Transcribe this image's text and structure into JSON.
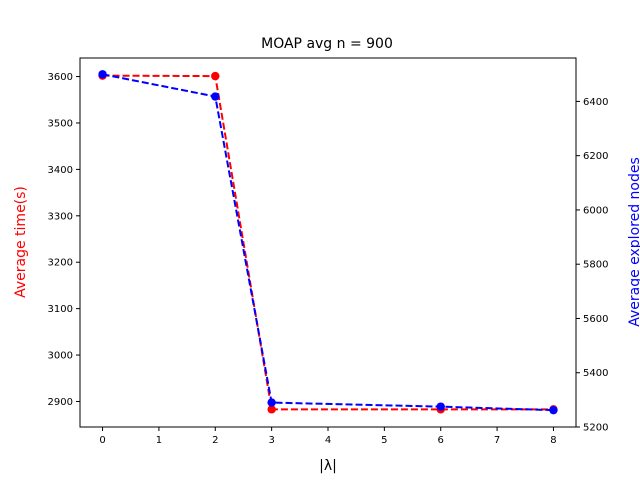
{
  "chart_data": {
    "type": "line",
    "title": "MOAP avg n = 900",
    "xlabel": "|λ|",
    "ylabel_left": "Average time(s)",
    "ylabel_right": "Average explored nodes",
    "xlim": [
      -0.4,
      8.4
    ],
    "ylim_left": [
      2845,
      3640
    ],
    "ylim_right": [
      5200,
      6560
    ],
    "x_ticks": [
      0,
      1,
      2,
      3,
      4,
      5,
      6,
      7,
      8
    ],
    "y_ticks_left": [
      2900,
      3000,
      3100,
      3200,
      3300,
      3400,
      3500,
      3600
    ],
    "y_ticks_right": [
      5200,
      5400,
      5600,
      5800,
      6000,
      6200,
      6400
    ],
    "series": [
      {
        "axis": "left",
        "color": "#ff0000",
        "style": "dashed",
        "marker": "circle",
        "x": [
          0,
          2,
          3,
          6,
          8
        ],
        "y": [
          3602,
          3601,
          2883,
          2883,
          2883
        ]
      },
      {
        "axis": "right",
        "color": "#0000ff",
        "style": "dashed",
        "marker": "circle",
        "x": [
          0,
          2,
          3,
          6,
          8
        ],
        "y": [
          6500,
          6418,
          5290,
          5275,
          5262
        ]
      }
    ]
  }
}
